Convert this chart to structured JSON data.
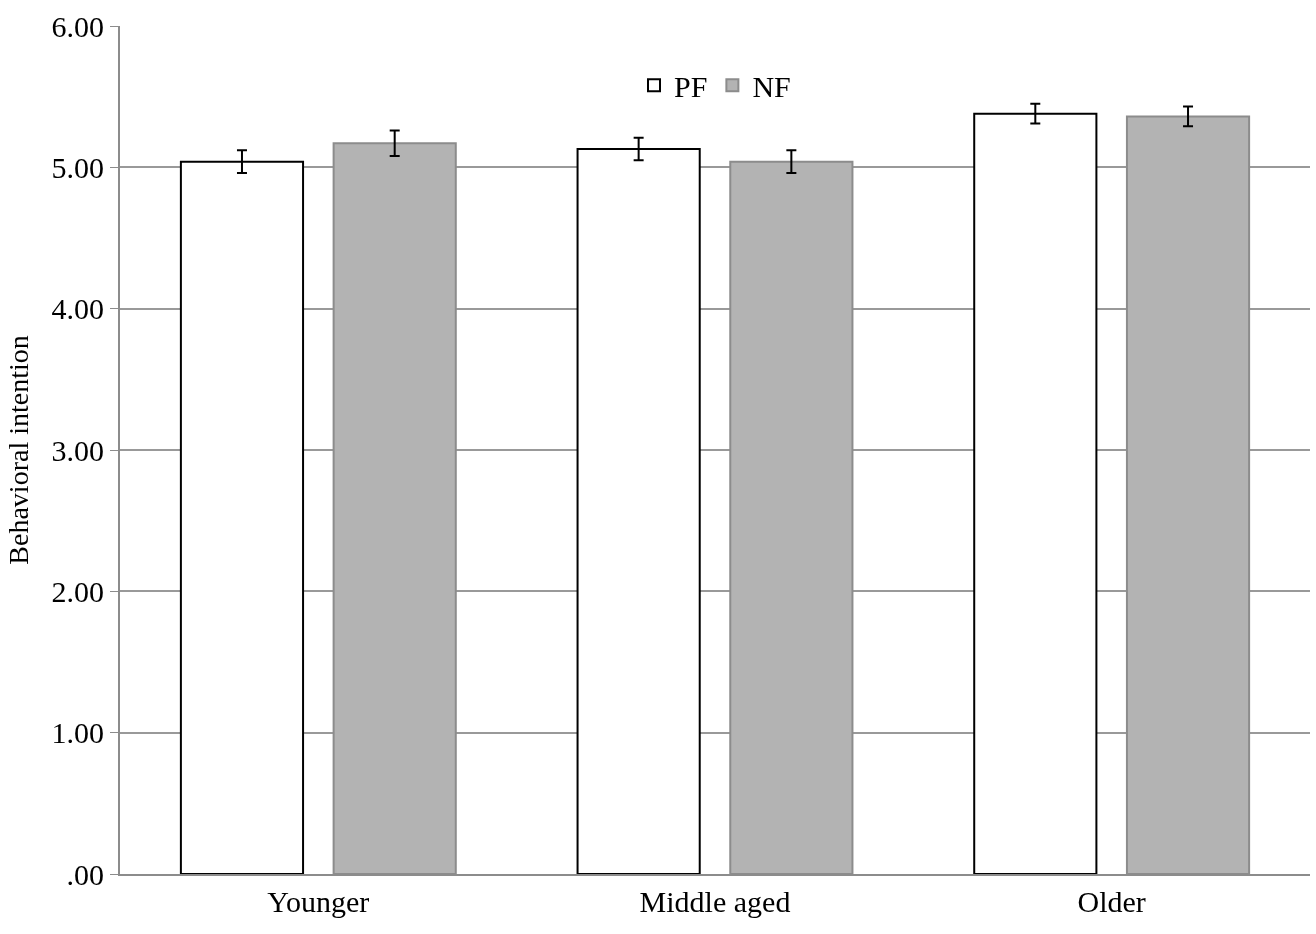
{
  "chart_data": {
    "type": "bar",
    "ylabel": "Behavioral intention",
    "categories": [
      "Younger",
      "Middle aged",
      "Older"
    ],
    "series": [
      {
        "name": "PF",
        "color": "#ffffff",
        "values": [
          5.04,
          5.13,
          5.38
        ],
        "errors": [
          0.08,
          0.08,
          0.07
        ]
      },
      {
        "name": "NF",
        "color": "#b3b3b3",
        "values": [
          5.17,
          5.04,
          5.36
        ],
        "errors": [
          0.09,
          0.08,
          0.07
        ]
      }
    ],
    "ylim": [
      0,
      6
    ],
    "yticks": [
      {
        "value": 0,
        "label": ".00"
      },
      {
        "value": 1,
        "label": "1.00"
      },
      {
        "value": 2,
        "label": "2.00"
      },
      {
        "value": 3,
        "label": "3.00"
      },
      {
        "value": 4,
        "label": "4.00"
      },
      {
        "value": 5,
        "label": "5.00"
      },
      {
        "value": 6,
        "label": "6.00"
      }
    ],
    "grid": "y",
    "legend": "top"
  }
}
